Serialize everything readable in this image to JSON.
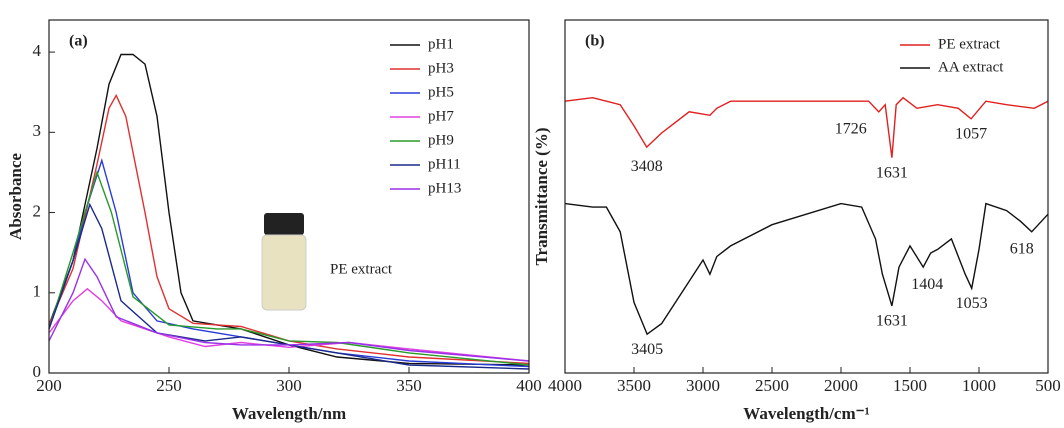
{
  "chart_data": [
    {
      "type": "line",
      "panel_label": "(a)",
      "x_label": "Wavelength/nm",
      "y_label": "Absorbance",
      "xlim": [
        200,
        400
      ],
      "xticks": [
        200,
        250,
        300,
        350,
        400
      ],
      "ylim": [
        0,
        4.4
      ],
      "yticks": [
        0,
        1,
        2,
        3,
        4
      ],
      "inset_label": "PE extract",
      "series": [
        {
          "name": "pH1",
          "color": "#111111",
          "x": [
            200,
            210,
            220,
            225,
            230,
            235,
            240,
            245,
            250,
            255,
            260,
            270,
            280,
            300,
            320,
            350,
            400
          ],
          "values": [
            0.6,
            1.4,
            2.8,
            3.6,
            3.97,
            3.97,
            3.85,
            3.2,
            2.0,
            1.0,
            0.65,
            0.6,
            0.55,
            0.35,
            0.2,
            0.12,
            0.1
          ]
        },
        {
          "name": "pH3",
          "color": "#e03030",
          "x": [
            200,
            210,
            220,
            225,
            228,
            232,
            240,
            245,
            250,
            260,
            270,
            280,
            300,
            320,
            350,
            400
          ],
          "values": [
            0.6,
            1.3,
            2.6,
            3.3,
            3.46,
            3.2,
            2.0,
            1.2,
            0.8,
            0.62,
            0.6,
            0.58,
            0.4,
            0.3,
            0.2,
            0.12
          ]
        },
        {
          "name": "pH5",
          "color": "#2a3cd8",
          "x": [
            200,
            210,
            215,
            222,
            228,
            235,
            245,
            260,
            280,
            300,
            320,
            350,
            400
          ],
          "values": [
            0.55,
            1.4,
            2.0,
            2.65,
            2.0,
            1.0,
            0.65,
            0.55,
            0.45,
            0.35,
            0.25,
            0.15,
            0.08
          ]
        },
        {
          "name": "pH7",
          "color": "#e040e0",
          "x": [
            200,
            210,
            216,
            222,
            230,
            250,
            265,
            280,
            300,
            325,
            350,
            400
          ],
          "values": [
            0.5,
            0.9,
            1.05,
            0.9,
            0.65,
            0.45,
            0.33,
            0.38,
            0.32,
            0.38,
            0.3,
            0.15
          ]
        },
        {
          "name": "pH9",
          "color": "#2a9a2a",
          "x": [
            200,
            210,
            220,
            226,
            235,
            250,
            270,
            280,
            300,
            320,
            350,
            400
          ],
          "values": [
            0.55,
            1.5,
            2.5,
            2.0,
            0.95,
            0.6,
            0.55,
            0.55,
            0.4,
            0.38,
            0.25,
            0.1
          ]
        },
        {
          "name": "pH11",
          "color": "#1a2a8a",
          "x": [
            200,
            210,
            217,
            222,
            230,
            245,
            265,
            280,
            300,
            320,
            350,
            400
          ],
          "values": [
            0.55,
            1.4,
            2.1,
            1.8,
            0.9,
            0.5,
            0.4,
            0.45,
            0.35,
            0.25,
            0.1,
            0.05
          ]
        },
        {
          "name": "pH13",
          "color": "#9a30e8",
          "x": [
            200,
            210,
            215,
            220,
            228,
            245,
            265,
            280,
            300,
            325,
            350,
            400
          ],
          "values": [
            0.4,
            1.0,
            1.42,
            1.2,
            0.7,
            0.5,
            0.38,
            0.35,
            0.35,
            0.38,
            0.28,
            0.15
          ]
        }
      ]
    },
    {
      "type": "line",
      "panel_label": "(b)",
      "x_label": "Wavelength/cm⁻¹",
      "y_label": "Transmittance (%)",
      "xlim": [
        4000,
        500
      ],
      "xticks": [
        4000,
        3500,
        3000,
        2500,
        2000,
        1500,
        1000,
        500
      ],
      "ylim": [
        0,
        100
      ],
      "series": [
        {
          "name": "PE extract",
          "color": "#e02020",
          "x": [
            4000,
            3800,
            3700,
            3600,
            3500,
            3408,
            3300,
            3100,
            2950,
            2900,
            2800,
            2000,
            1800,
            1726,
            1680,
            1631,
            1600,
            1550,
            1450,
            1300,
            1150,
            1057,
            950,
            800,
            600,
            500
          ],
          "values": [
            77,
            78,
            77,
            76,
            70,
            64,
            68,
            74,
            73,
            75,
            77,
            77,
            77,
            74,
            76,
            61,
            76,
            78,
            75,
            76,
            75,
            72,
            77,
            76,
            75,
            77
          ]
        },
        {
          "name": "AA extract",
          "color": "#111111",
          "x": [
            4000,
            3800,
            3700,
            3600,
            3500,
            3405,
            3300,
            3100,
            3000,
            2950,
            2900,
            2800,
            2500,
            2000,
            1850,
            1750,
            1700,
            1631,
            1580,
            1500,
            1404,
            1350,
            1300,
            1200,
            1100,
            1053,
            1000,
            950,
            800,
            700,
            618,
            500
          ],
          "values": [
            48,
            47,
            47,
            40,
            20,
            11,
            14,
            26,
            32,
            28,
            33,
            36,
            42,
            48,
            47,
            38,
            28,
            19,
            30,
            36,
            30,
            34,
            35,
            38,
            28,
            24,
            35,
            48,
            46,
            43,
            40,
            45
          ]
        }
      ],
      "annotations": [
        "3408",
        "1726",
        "1631",
        "1057",
        "3405",
        "1631",
        "1404",
        "1053",
        "618"
      ]
    }
  ]
}
